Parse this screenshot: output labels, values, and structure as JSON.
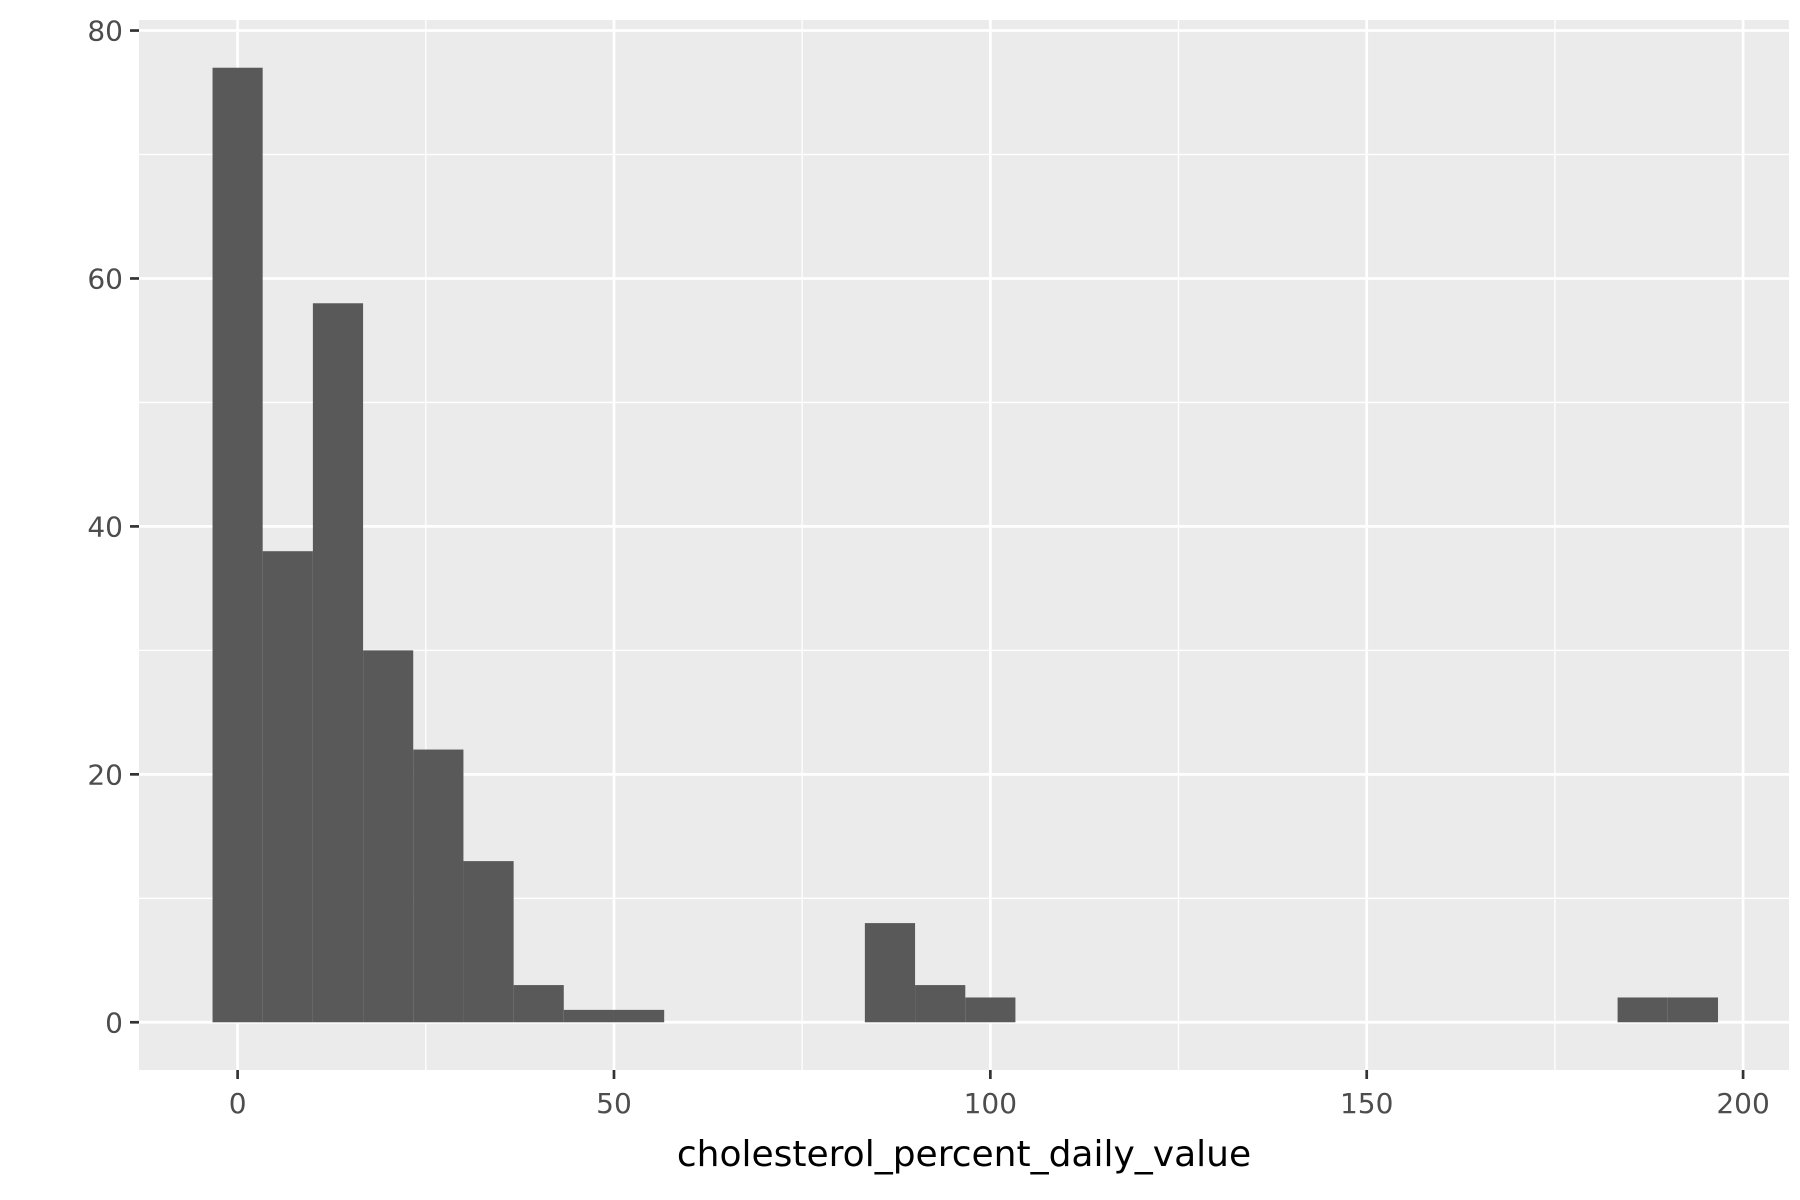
{
  "chart_data": {
    "type": "bar",
    "title": "",
    "xlabel": "cholesterol_percent_daily_value",
    "ylabel": "",
    "xlim": [
      -13.1,
      206.1
    ],
    "ylim": [
      -3.85,
      80.85
    ],
    "x_ticks": [
      0,
      50,
      100,
      150,
      200
    ],
    "y_ticks": [
      0,
      20,
      40,
      60,
      80
    ],
    "grid": true,
    "bin_width": 6.67,
    "bins": [
      {
        "x0": -3.33,
        "x1": 3.33,
        "count": 77
      },
      {
        "x0": 3.33,
        "x1": 10.0,
        "count": 38
      },
      {
        "x0": 10.0,
        "x1": 16.67,
        "count": 58
      },
      {
        "x0": 16.67,
        "x1": 23.33,
        "count": 30
      },
      {
        "x0": 23.33,
        "x1": 30.0,
        "count": 22
      },
      {
        "x0": 30.0,
        "x1": 36.67,
        "count": 13
      },
      {
        "x0": 36.67,
        "x1": 43.33,
        "count": 3
      },
      {
        "x0": 43.33,
        "x1": 50.0,
        "count": 1
      },
      {
        "x0": 50.0,
        "x1": 56.67,
        "count": 1
      },
      {
        "x0": 83.33,
        "x1": 90.0,
        "count": 8
      },
      {
        "x0": 90.0,
        "x1": 96.67,
        "count": 3
      },
      {
        "x0": 96.67,
        "x1": 103.33,
        "count": 2
      },
      {
        "x0": 183.33,
        "x1": 190.0,
        "count": 2
      },
      {
        "x0": 190.0,
        "x1": 196.67,
        "count": 2
      }
    ],
    "colors": {
      "panel": "#ebebeb",
      "grid_major": "#ffffff",
      "bar_fill": "#595959",
      "tick": "#333333"
    }
  }
}
